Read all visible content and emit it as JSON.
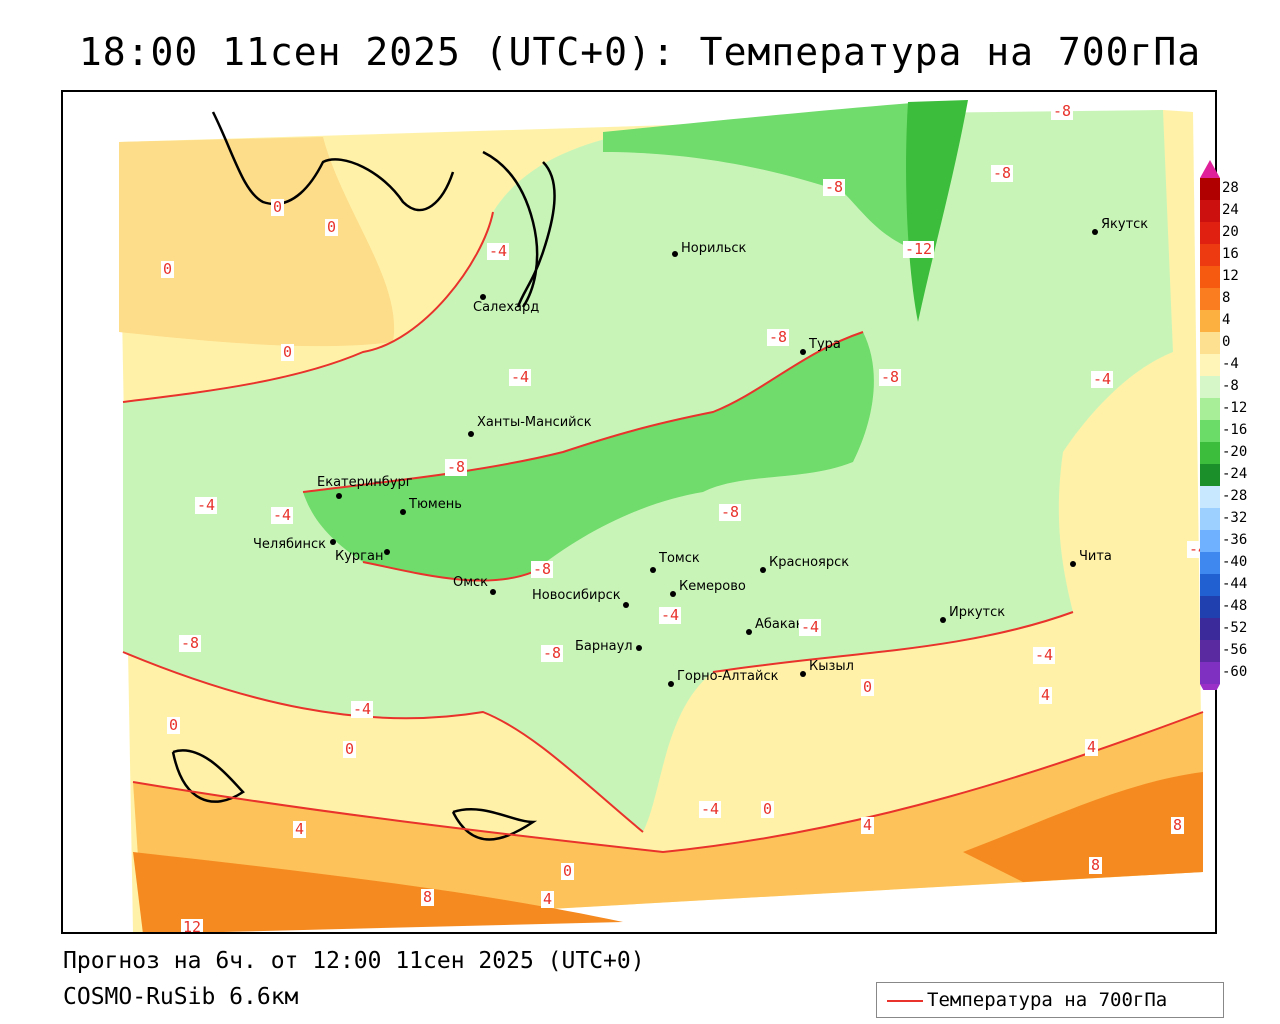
{
  "title": "18:00 11сен 2025 (UTC+0): Температура на 700гПа",
  "footer": {
    "forecast": "Прогноз на 6ч. от 12:00 11сен 2025 (UTC+0)",
    "model": "COSMO-RuSib 6.6км"
  },
  "legend": {
    "label": "Температура на 700гПа",
    "color": "#e8322b"
  },
  "colorbar": {
    "labels": [
      "28",
      "24",
      "20",
      "16",
      "12",
      "8",
      "4",
      "0",
      "-4",
      "-8",
      "-12",
      "-16",
      "-20",
      "-24",
      "-28",
      "-32",
      "-36",
      "-40",
      "-44",
      "-48",
      "-52",
      "-56",
      "-60"
    ],
    "colors": [
      "#b00000",
      "#cc1010",
      "#e02010",
      "#ee3a10",
      "#f55a10",
      "#fa7d20",
      "#fcb040",
      "#fde090",
      "#fff5b8",
      "#d6f7c8",
      "#a8ee98",
      "#6cdc68",
      "#3cbd3c",
      "#1a8f2a",
      "#c8e8ff",
      "#9ed0ff",
      "#6fb0ff",
      "#3f88f0",
      "#2060d0",
      "#2040b0",
      "#3a2a9a",
      "#5a2aa0",
      "#8030c0"
    ]
  },
  "cities": [
    {
      "name": "Норильск"
    },
    {
      "name": "Якутск"
    },
    {
      "name": "Салехард"
    },
    {
      "name": "Тура"
    },
    {
      "name": "Ханты-Мансийск"
    },
    {
      "name": "Екатеринбург"
    },
    {
      "name": "Тюмень"
    },
    {
      "name": "Челябинск"
    },
    {
      "name": "Курган"
    },
    {
      "name": "Омск"
    },
    {
      "name": "Томск"
    },
    {
      "name": "Красноярск"
    },
    {
      "name": "Кемерово"
    },
    {
      "name": "Новосибирск"
    },
    {
      "name": "Абакан"
    },
    {
      "name": "Иркутск"
    },
    {
      "name": "Чита"
    },
    {
      "name": "Барнаул"
    },
    {
      "name": "Горно-Алтайск"
    },
    {
      "name": "Кызыл"
    }
  ],
  "isotherm_labels": [
    "0",
    "0",
    "0",
    "0",
    "-4",
    "-4",
    "-8",
    "-8",
    "-8",
    "-8",
    "-12",
    "-8",
    "-8",
    "-4",
    "-4",
    "-8",
    "-8",
    "-8",
    "-8",
    "-4",
    "-4",
    "-4",
    "-4",
    "-4",
    "-4",
    "0",
    "0",
    "0",
    "4",
    "4",
    "4",
    "4",
    "0",
    "0",
    "8",
    "8",
    "8",
    "4",
    "12",
    "0",
    "-4"
  ]
}
